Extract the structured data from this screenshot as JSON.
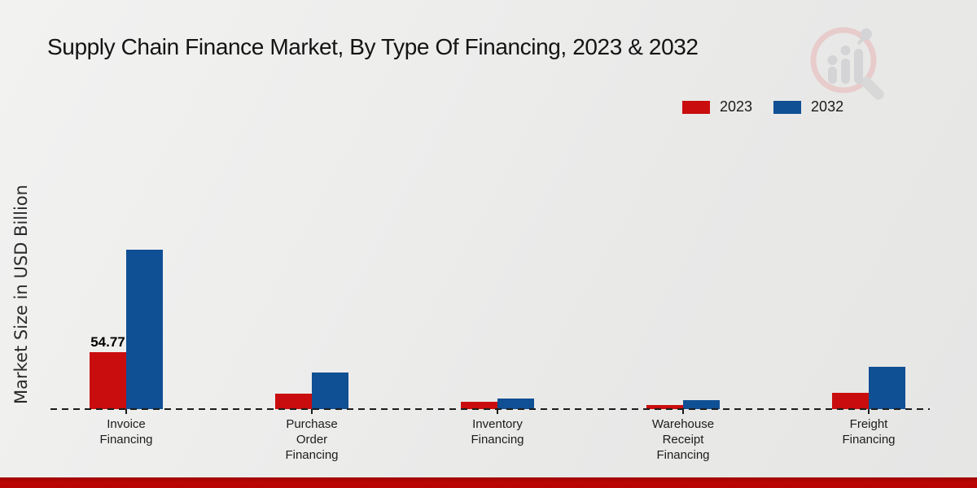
{
  "title": "Supply Chain Finance Market, By Type Of Financing, 2023 & 2032",
  "y_axis_label": "Market Size in USD Billion",
  "legend": {
    "items": [
      {
        "label": "2023",
        "color": "#c90d0e"
      },
      {
        "label": "2032",
        "color": "#0f4f94"
      }
    ]
  },
  "watermark_icon": "magnifier-bar-chart-logo",
  "footer": {
    "accent_color": "#b80404"
  },
  "chart_data": {
    "type": "bar",
    "title": "Supply Chain Finance Market, By Type Of Financing, 2023 & 2032",
    "xlabel": "",
    "ylabel": "Market Size in USD Billion",
    "categories": [
      [
        "Invoice",
        "Financing"
      ],
      [
        "Purchase",
        "Order",
        "Financing"
      ],
      [
        "Inventory",
        "Financing"
      ],
      [
        "Warehouse",
        "Receipt",
        "Financing"
      ],
      [
        "Freight",
        "Financing"
      ]
    ],
    "series": [
      {
        "name": "2023",
        "color": "#c90d0e",
        "values": [
          54.77,
          15.0,
          6.9,
          4.0,
          15.8
        ]
      },
      {
        "name": "2032",
        "color": "#0f4f94",
        "values": [
          153.0,
          34.9,
          10.2,
          8.5,
          40.6
        ]
      }
    ],
    "data_labels": [
      {
        "series": "2023",
        "category_index": 0,
        "text": "54.77"
      }
    ],
    "ylim": [
      0,
      160
    ],
    "grid": false,
    "baseline_style": "dashed",
    "legend_position": "top-right"
  }
}
